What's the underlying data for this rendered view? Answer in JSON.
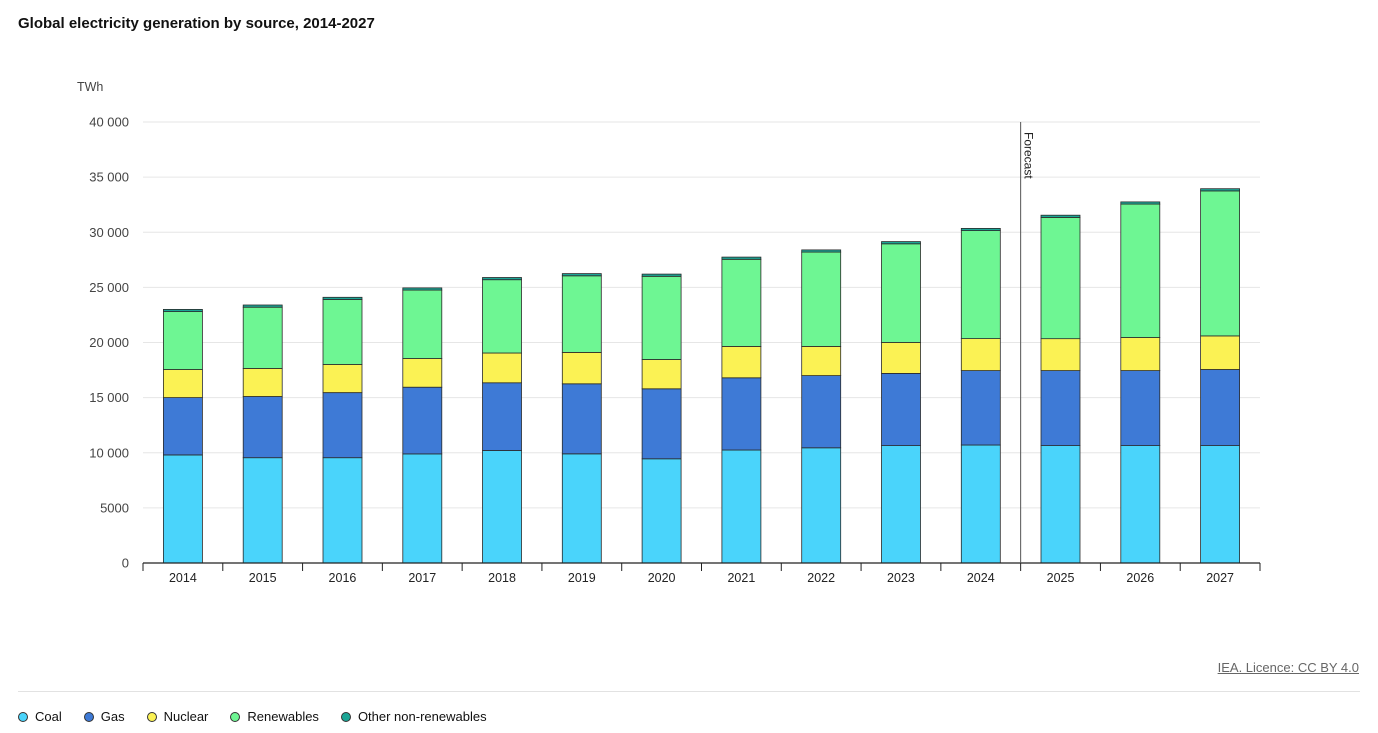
{
  "page": {
    "title": "Global electricity generation by source, 2014-2027",
    "credit": "IEA. Licence: CC BY 4.0"
  },
  "chart_data": {
    "type": "bar",
    "stacked": true,
    "title": "Global electricity generation by source, 2014-2027",
    "ylabel": "TWh",
    "ylim": [
      0,
      40000
    ],
    "yticks": [
      0,
      5000,
      10000,
      15000,
      20000,
      25000,
      30000,
      35000,
      40000
    ],
    "ytick_labels": [
      "0",
      "5000",
      "10 000",
      "15 000",
      "20 000",
      "25 000",
      "30 000",
      "35 000",
      "40 000"
    ],
    "grid": true,
    "legend_position": "bottom-left",
    "categories": [
      "2014",
      "2015",
      "2016",
      "2017",
      "2018",
      "2019",
      "2020",
      "2021",
      "2022",
      "2023",
      "2024",
      "2025",
      "2026",
      "2027"
    ],
    "annotation": {
      "text": "Forecast",
      "between": [
        "2024",
        "2025"
      ]
    },
    "series": [
      {
        "name": "Coal",
        "color": "#4ad4fb",
        "values": [
          9800,
          9550,
          9550,
          9900,
          10200,
          9900,
          9450,
          10250,
          10450,
          10650,
          10700,
          10650,
          10650,
          10650
        ]
      },
      {
        "name": "Gas",
        "color": "#3e7ad6",
        "values": [
          5200,
          5550,
          5900,
          6050,
          6150,
          6350,
          6350,
          6550,
          6550,
          6550,
          6750,
          6800,
          6800,
          6900
        ]
      },
      {
        "name": "Nuclear",
        "color": "#fbf254",
        "values": [
          2550,
          2550,
          2550,
          2600,
          2700,
          2850,
          2650,
          2850,
          2650,
          2800,
          2900,
          2900,
          3000,
          3050
        ]
      },
      {
        "name": "Renewables",
        "color": "#6ef693",
        "values": [
          5250,
          5550,
          5900,
          6200,
          6650,
          6950,
          7550,
          7900,
          8550,
          8950,
          9800,
          11000,
          12100,
          13150
        ]
      },
      {
        "name": "Other non-renewables",
        "color": "#1ba595",
        "values": [
          200,
          200,
          200,
          200,
          200,
          200,
          200,
          200,
          200,
          200,
          200,
          200,
          200,
          200
        ]
      }
    ]
  }
}
